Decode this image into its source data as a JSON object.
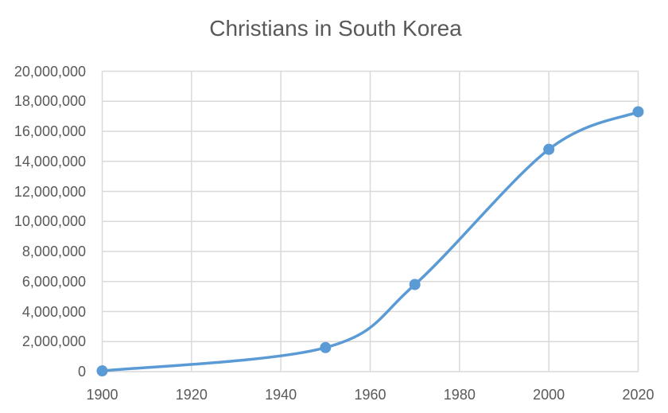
{
  "chart_data": {
    "type": "line",
    "title": "Christians in South Korea",
    "xlabel": "",
    "ylabel": "",
    "x": [
      1900,
      1950,
      1970,
      2000,
      2020
    ],
    "series": [
      {
        "name": "Christians in South Korea",
        "values": [
          50000,
          1600000,
          5800000,
          14800000,
          17300000
        ]
      }
    ],
    "x_ticks": [
      "1900",
      "1920",
      "1940",
      "1960",
      "1980",
      "2000",
      "2020"
    ],
    "x_tick_values": [
      1900,
      1920,
      1940,
      1960,
      1980,
      2000,
      2020
    ],
    "y_ticks": [
      "0",
      "2,000,000",
      "4,000,000",
      "6,000,000",
      "8,000,000",
      "10,000,000",
      "12,000,000",
      "14,000,000",
      "16,000,000",
      "18,000,000",
      "20,000,000"
    ],
    "y_tick_values": [
      0,
      2000000,
      4000000,
      6000000,
      8000000,
      10000000,
      12000000,
      14000000,
      16000000,
      18000000,
      20000000
    ],
    "xlim": [
      1900,
      2020
    ],
    "ylim": [
      0,
      20000000
    ],
    "grid": true,
    "legend": "none",
    "smooth": true,
    "markers": true,
    "colors": {
      "line": "#5B9BD5",
      "marker": "#5B9BD5",
      "grid": "#D9D9D9",
      "text": "#595959",
      "background": "#FFFFFF"
    }
  }
}
